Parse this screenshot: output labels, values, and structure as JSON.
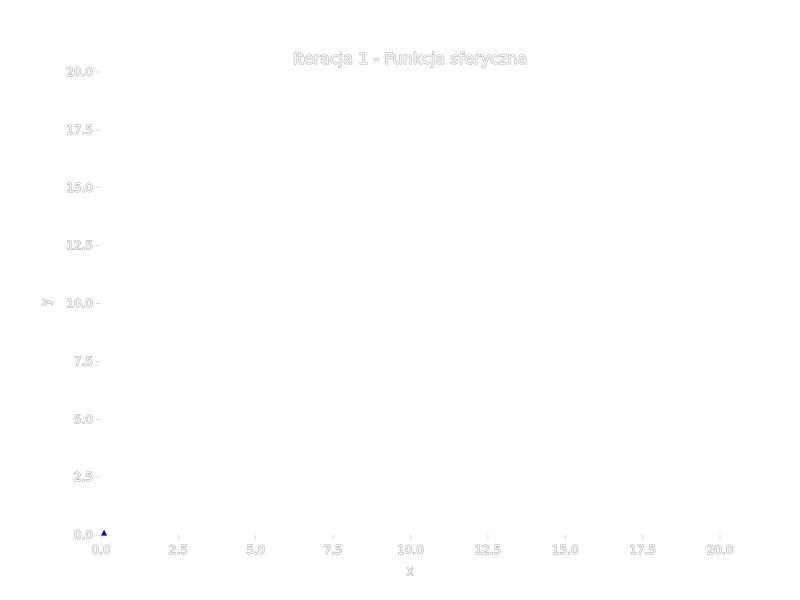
{
  "chart_data": {
    "type": "scatter",
    "title": "Iteracja 1 - Funkcja sferyczna",
    "xlabel": "x",
    "ylabel": "y",
    "xlim": [
      0,
      20
    ],
    "ylim": [
      0,
      20
    ],
    "xticks": [
      "0.0",
      "2.5",
      "5.0",
      "7.5",
      "10.0",
      "12.5",
      "15.0",
      "17.5",
      "20.0"
    ],
    "yticks": [
      "0.0",
      "2.5",
      "5.0",
      "7.5",
      "10.0",
      "12.5",
      "15.0",
      "17.5",
      "20.0"
    ],
    "grid": false,
    "series": [
      {
        "color": "#0000cc",
        "marker": "triangle",
        "points": [
          {
            "x": 0.1,
            "y": 0.1
          }
        ]
      }
    ]
  }
}
